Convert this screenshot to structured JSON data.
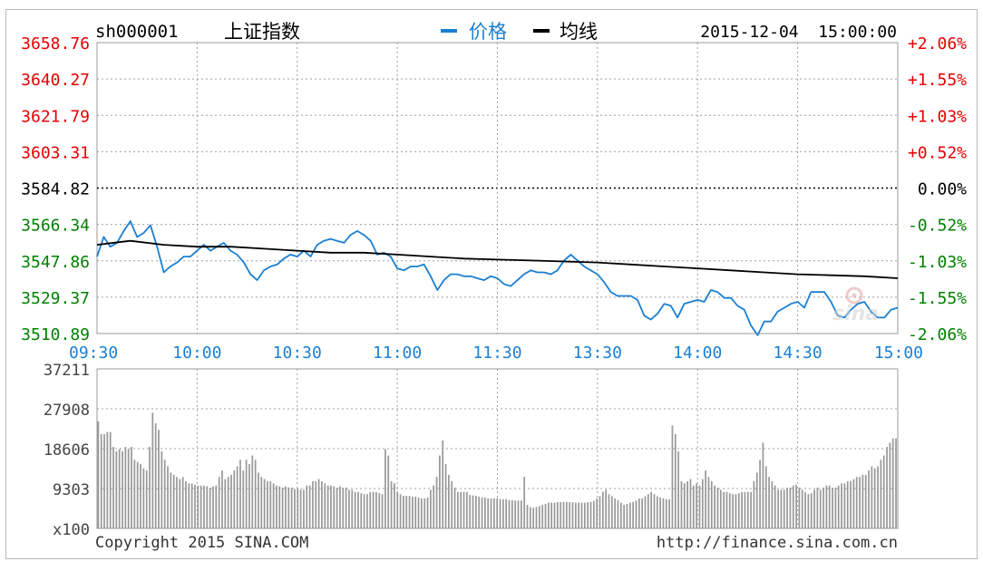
{
  "header": {
    "code": "sh000001",
    "name": "上证指数",
    "legend_price": "价格",
    "legend_avg": "均线",
    "datetime": "2015-12-04  15:00:00"
  },
  "colors": {
    "up": "#e60000",
    "down": "#008000",
    "price_line": "#1b7fd1",
    "avg_line": "#000000",
    "grid": "#a0a0a0",
    "volume_bar": "#999999",
    "time_label": "#1b7fd1"
  },
  "footer": {
    "copyright": "Copyright 2015 SINA.COM",
    "url": "http://finance.sina.com.cn"
  },
  "watermark": "sina",
  "chart_data": [
    {
      "type": "line",
      "prev_close": 3584.82,
      "ylim": [
        3510.89,
        3658.76
      ],
      "y_ticks": [
        "3658.76",
        "3640.27",
        "3621.79",
        "3603.31",
        "3584.82",
        "3566.34",
        "3547.86",
        "3529.37",
        "3510.89"
      ],
      "pct_ticks": [
        "+2.06%",
        "+1.55%",
        "+1.03%",
        "+0.52%",
        "0.00%",
        "-0.52%",
        "-1.03%",
        "-1.55%",
        "-2.06%"
      ],
      "x_ticks": [
        "09:30",
        "10:00",
        "10:30",
        "11:00",
        "11:30",
        "13:30",
        "14:00",
        "14:30",
        "15:00"
      ],
      "xlim": [
        0,
        240
      ],
      "series": [
        {
          "name": "价格",
          "x": [
            0,
            2,
            4,
            6,
            8,
            10,
            12,
            14,
            16,
            18,
            20,
            22,
            24,
            26,
            28,
            30,
            32,
            34,
            36,
            38,
            40,
            42,
            44,
            46,
            48,
            50,
            52,
            54,
            56,
            58,
            60,
            62,
            64,
            66,
            68,
            70,
            72,
            74,
            76,
            78,
            80,
            82,
            84,
            86,
            88,
            90,
            92,
            94,
            96,
            98,
            100,
            102,
            104,
            106,
            108,
            110,
            112,
            114,
            116,
            118,
            120,
            122,
            124,
            126,
            128,
            130,
            132,
            134,
            136,
            138,
            140,
            142,
            144,
            146,
            148,
            150,
            152,
            154,
            156,
            158,
            160,
            162,
            164,
            166,
            168,
            170,
            172,
            174,
            176,
            178,
            180,
            182,
            184,
            186,
            188,
            190,
            192,
            194,
            196,
            198,
            200,
            202,
            204,
            206,
            208,
            210,
            212,
            214,
            216,
            218,
            220,
            222,
            224,
            226,
            228,
            230,
            232,
            234,
            236,
            238,
            240
          ],
          "values": [
            3550,
            3560,
            3555,
            3557,
            3563,
            3568,
            3560,
            3562,
            3566,
            3555,
            3542,
            3545,
            3547,
            3550,
            3550,
            3553,
            3556,
            3553,
            3555,
            3557,
            3553,
            3551,
            3547,
            3541,
            3538,
            3543,
            3545,
            3546,
            3549,
            3551,
            3550,
            3553,
            3550,
            3556,
            3558,
            3559,
            3558,
            3557,
            3561,
            3563,
            3561,
            3558,
            3551,
            3552,
            3550,
            3544,
            3543,
            3545,
            3545,
            3546,
            3540,
            3533,
            3538,
            3541,
            3541,
            3540,
            3540,
            3539,
            3538,
            3540,
            3539,
            3536,
            3535,
            3538,
            3541,
            3543,
            3542,
            3542,
            3541,
            3543,
            3548,
            3551,
            3548,
            3545,
            3543,
            3541,
            3537,
            3532,
            3530,
            3530,
            3530,
            3528,
            3520,
            3518,
            3521,
            3526,
            3525,
            3519,
            3526,
            3527,
            3528,
            3527,
            3533,
            3532,
            3529,
            3529,
            3525,
            3523,
            3515,
            3510,
            3517,
            3517,
            3522,
            3524,
            3526,
            3527,
            3524,
            3532,
            3532,
            3532,
            3527,
            3520,
            3519,
            3523,
            3526,
            3527,
            3522,
            3519,
            3519,
            3523,
            3524
          ]
        },
        {
          "name": "均线",
          "x": [
            0,
            10,
            20,
            30,
            40,
            50,
            60,
            70,
            80,
            90,
            100,
            110,
            120,
            130,
            140,
            150,
            160,
            170,
            180,
            190,
            200,
            210,
            220,
            230,
            240
          ],
          "values": [
            3556,
            3558,
            3556,
            3555,
            3555,
            3554,
            3553,
            3552,
            3552,
            3551,
            3550,
            3549,
            3548.5,
            3548,
            3547.5,
            3547,
            3546,
            3545,
            3544,
            3543,
            3542,
            3541,
            3540.5,
            3540,
            3539
          ]
        }
      ]
    },
    {
      "type": "bar",
      "title": "",
      "ylim": [
        0,
        37211
      ],
      "y_ticks": [
        "37211",
        "27908",
        "18606",
        "9303",
        "x100"
      ],
      "unit": "x100",
      "values": [
        25000,
        22000,
        22000,
        22500,
        22500,
        19000,
        18000,
        18500,
        18000,
        19000,
        18500,
        19000,
        16000,
        15500,
        15000,
        14000,
        13500,
        19000,
        27000,
        24500,
        23000,
        18000,
        16000,
        14500,
        13000,
        12500,
        12000,
        11500,
        12000,
        11000,
        10500,
        10500,
        10200,
        10000,
        10000,
        10000,
        9800,
        9500,
        9800,
        10000,
        12000,
        13500,
        11500,
        12000,
        12500,
        13500,
        14500,
        16000,
        13500,
        16000,
        15000,
        17000,
        16000,
        13000,
        12000,
        11500,
        11000,
        11000,
        10500,
        10000,
        9800,
        9500,
        9800,
        9600,
        9500,
        9200,
        9200,
        9000,
        9000,
        10000,
        10000,
        11000,
        11000,
        11500,
        11000,
        10500,
        10000,
        10000,
        9800,
        9500,
        9800,
        9500,
        9500,
        9000,
        9000,
        8500,
        8500,
        8200,
        8000,
        8000,
        8500,
        8500,
        8500,
        8200,
        8000,
        18500,
        17000,
        11000,
        10500,
        8500,
        8000,
        7600,
        7600,
        7600,
        7400,
        7400,
        7200,
        7000,
        7000,
        7200,
        9000,
        10000,
        12000,
        17000,
        20500,
        15000,
        12500,
        11000,
        9500,
        8500,
        8500,
        8500,
        8500,
        7800,
        7700,
        7600,
        7400,
        7200,
        7200,
        7000,
        7000,
        7000,
        7000,
        6800,
        6800,
        6800,
        6600,
        6600,
        6500,
        6500,
        6500,
        12000,
        5500,
        5000,
        4800,
        5000,
        5200,
        5500,
        5700,
        6000,
        6000,
        6000,
        6100,
        6100,
        6200,
        6200,
        6100,
        6100,
        6000,
        6000,
        6000,
        6000,
        6100,
        6200,
        6400,
        7000,
        7500,
        8500,
        9000,
        8000,
        7500,
        7000,
        6600,
        6000,
        5500,
        5700,
        6000,
        6200,
        6500,
        7000,
        7000,
        7500,
        8000,
        8500,
        8000,
        7500,
        7200,
        7000,
        6800,
        6800,
        24000,
        22000,
        18000,
        11000,
        10500,
        11000,
        11500,
        10000,
        10500,
        10000,
        11500,
        13500,
        12000,
        11000,
        10000,
        9500,
        9000,
        8500,
        8500,
        8200,
        8000,
        8000,
        8200,
        8500,
        8500,
        8500,
        8500,
        11000,
        13000,
        16000,
        20000,
        14500,
        12000,
        11000,
        10000,
        9000,
        9000,
        9000,
        9500,
        9500,
        10000,
        10200,
        9500,
        9000,
        8500,
        8000,
        8200,
        9000,
        9500,
        9000,
        9500,
        10000,
        10000,
        9500,
        9500,
        10000,
        10500,
        10500,
        11000,
        11000,
        11500,
        12000,
        12000,
        12500,
        12500,
        13500,
        14500,
        14000,
        14500,
        16000,
        17000,
        19000,
        20000,
        21000,
        21000
      ]
    }
  ]
}
